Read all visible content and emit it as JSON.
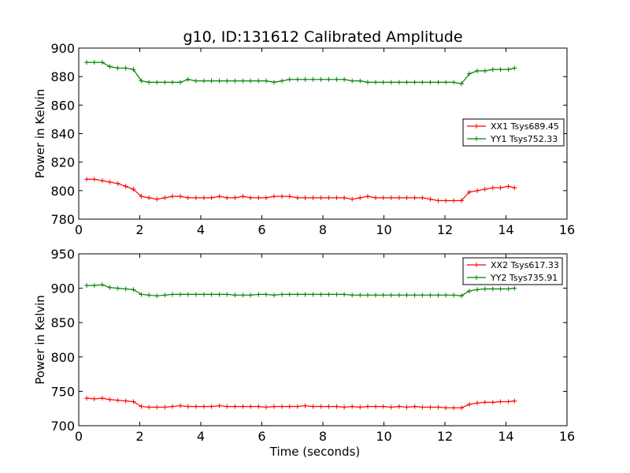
{
  "figure": {
    "title": "g10, ID:131612 Calibrated Amplitude"
  },
  "chart_data": [
    {
      "type": "line",
      "ylabel": "Power in Kelvin",
      "xlabel": "",
      "xlim": [
        0,
        16
      ],
      "ylim": [
        780,
        900
      ],
      "xticks": [
        0,
        2,
        4,
        6,
        8,
        10,
        12,
        14,
        16
      ],
      "yticks": [
        780,
        800,
        820,
        840,
        860,
        880,
        900
      ],
      "legend_position": "center-right",
      "x": [
        0.26,
        0.51,
        0.77,
        1.02,
        1.28,
        1.54,
        1.79,
        2.05,
        2.3,
        2.56,
        2.82,
        3.07,
        3.33,
        3.58,
        3.84,
        4.1,
        4.35,
        4.61,
        4.86,
        5.12,
        5.38,
        5.63,
        5.89,
        6.14,
        6.4,
        6.66,
        6.91,
        7.17,
        7.42,
        7.68,
        7.94,
        8.19,
        8.45,
        8.7,
        8.96,
        9.22,
        9.47,
        9.73,
        9.98,
        10.24,
        10.5,
        10.75,
        11.01,
        11.26,
        11.52,
        11.78,
        12.03,
        12.29,
        12.54,
        12.8,
        13.06,
        13.31,
        13.57,
        13.82,
        14.08,
        14.28
      ],
      "series": [
        {
          "name": "XX1 Tsys689.45",
          "color": "#ff0000",
          "values": [
            808,
            808,
            807,
            806,
            805,
            803,
            801,
            796,
            795,
            794,
            795,
            796,
            796,
            795,
            795,
            795,
            795,
            796,
            795,
            795,
            796,
            795,
            795,
            795,
            796,
            796,
            796,
            795,
            795,
            795,
            795,
            795,
            795,
            795,
            794,
            795,
            796,
            795,
            795,
            795,
            795,
            795,
            795,
            795,
            794,
            793,
            793,
            793,
            793,
            799,
            800,
            801,
            802,
            802,
            803,
            802
          ]
        },
        {
          "name": "YY1 Tsys752.33",
          "color": "#008000",
          "values": [
            890,
            890,
            890,
            887,
            886,
            886,
            885,
            877,
            876,
            876,
            876,
            876,
            876,
            878,
            877,
            877,
            877,
            877,
            877,
            877,
            877,
            877,
            877,
            877,
            876,
            877,
            878,
            878,
            878,
            878,
            878,
            878,
            878,
            878,
            877,
            877,
            876,
            876,
            876,
            876,
            876,
            876,
            876,
            876,
            876,
            876,
            876,
            876,
            875,
            882,
            884,
            884,
            885,
            885,
            885,
            886
          ]
        }
      ]
    },
    {
      "type": "line",
      "ylabel": "Power in Kelvin",
      "xlabel": "Time (seconds)",
      "xlim": [
        0,
        16
      ],
      "ylim": [
        700,
        950
      ],
      "xticks": [
        0,
        2,
        4,
        6,
        8,
        10,
        12,
        14,
        16
      ],
      "yticks": [
        700,
        750,
        800,
        850,
        900,
        950
      ],
      "legend_position": "top-right",
      "x": [
        0.26,
        0.51,
        0.77,
        1.02,
        1.28,
        1.54,
        1.79,
        2.05,
        2.3,
        2.56,
        2.82,
        3.07,
        3.33,
        3.58,
        3.84,
        4.1,
        4.35,
        4.61,
        4.86,
        5.12,
        5.38,
        5.63,
        5.89,
        6.14,
        6.4,
        6.66,
        6.91,
        7.17,
        7.42,
        7.68,
        7.94,
        8.19,
        8.45,
        8.7,
        8.96,
        9.22,
        9.47,
        9.73,
        9.98,
        10.24,
        10.5,
        10.75,
        11.01,
        11.26,
        11.52,
        11.78,
        12.03,
        12.29,
        12.54,
        12.8,
        13.06,
        13.31,
        13.57,
        13.82,
        14.08,
        14.28
      ],
      "series": [
        {
          "name": "XX2 Tsys617.33",
          "color": "#ff0000",
          "values": [
            740,
            739,
            740,
            738,
            737,
            736,
            735,
            728,
            727,
            727,
            727,
            728,
            729,
            728,
            728,
            728,
            728,
            729,
            728,
            728,
            728,
            728,
            728,
            727,
            728,
            728,
            728,
            728,
            729,
            728,
            728,
            728,
            728,
            727,
            728,
            727,
            728,
            728,
            728,
            727,
            728,
            727,
            728,
            727,
            727,
            727,
            726,
            726,
            726,
            731,
            733,
            734,
            734,
            735,
            735,
            736
          ]
        },
        {
          "name": "YY2 Tsys735.91",
          "color": "#008000",
          "values": [
            904,
            904,
            905,
            901,
            900,
            899,
            898,
            891,
            890,
            889,
            890,
            891,
            891,
            891,
            891,
            891,
            891,
            891,
            891,
            890,
            890,
            890,
            891,
            891,
            890,
            891,
            891,
            891,
            891,
            891,
            891,
            891,
            891,
            891,
            890,
            890,
            890,
            890,
            890,
            890,
            890,
            890,
            890,
            890,
            890,
            890,
            890,
            890,
            889,
            896,
            898,
            899,
            899,
            899,
            899,
            900
          ]
        }
      ]
    }
  ]
}
